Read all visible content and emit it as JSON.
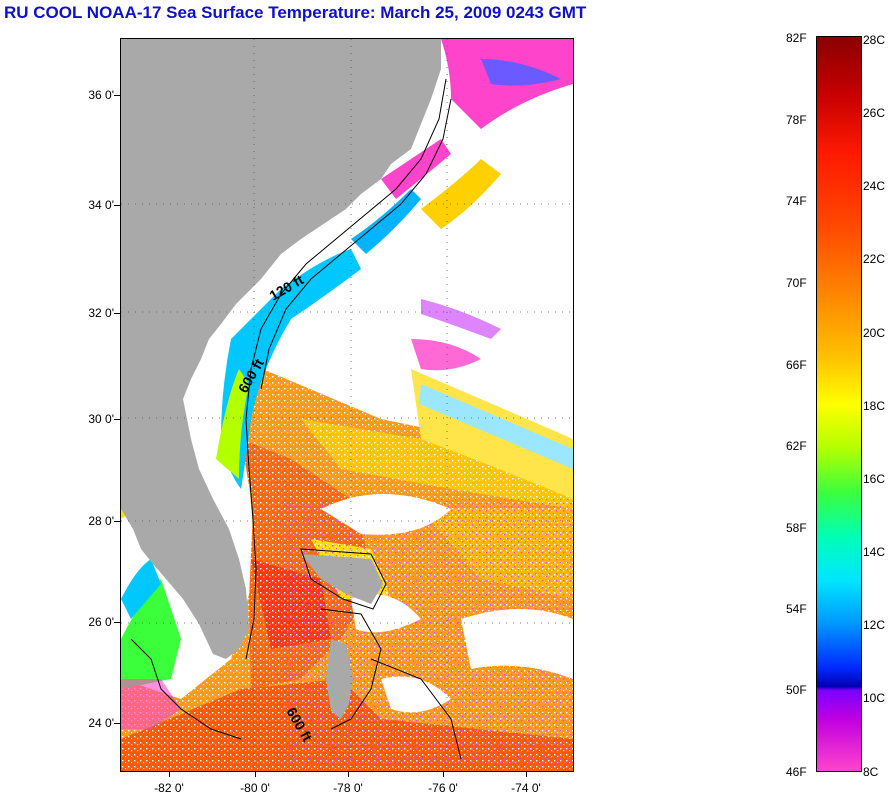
{
  "title": "RU COOL  NOAA-17  Sea Surface Temperature:  March 25, 2009 0243 GMT",
  "map": {
    "lat_labels": [
      "36 0'",
      "34 0'",
      "32 0'",
      "30 0'",
      "28 0'",
      "26 0'",
      "24 0'"
    ],
    "lon_labels": [
      "-82 0'",
      "-80 0'",
      "-78 0'",
      "-76 0'",
      "-74 0'"
    ],
    "isobath_labels": [
      "120 ft",
      "600 ft",
      "600 ft"
    ],
    "colors": {
      "land": "#a9a9a9",
      "cloud": "#ffffff",
      "contour": "#000000"
    }
  },
  "colorbar": {
    "fahrenheit": [
      "82F",
      "78F",
      "74F",
      "70F",
      "66F",
      "62F",
      "58F",
      "54F",
      "50F",
      "46F"
    ],
    "celsius": [
      "28C",
      "26C",
      "24C",
      "22C",
      "20C",
      "18C",
      "16C",
      "14C",
      "12C",
      "10C",
      "8C"
    ]
  }
}
